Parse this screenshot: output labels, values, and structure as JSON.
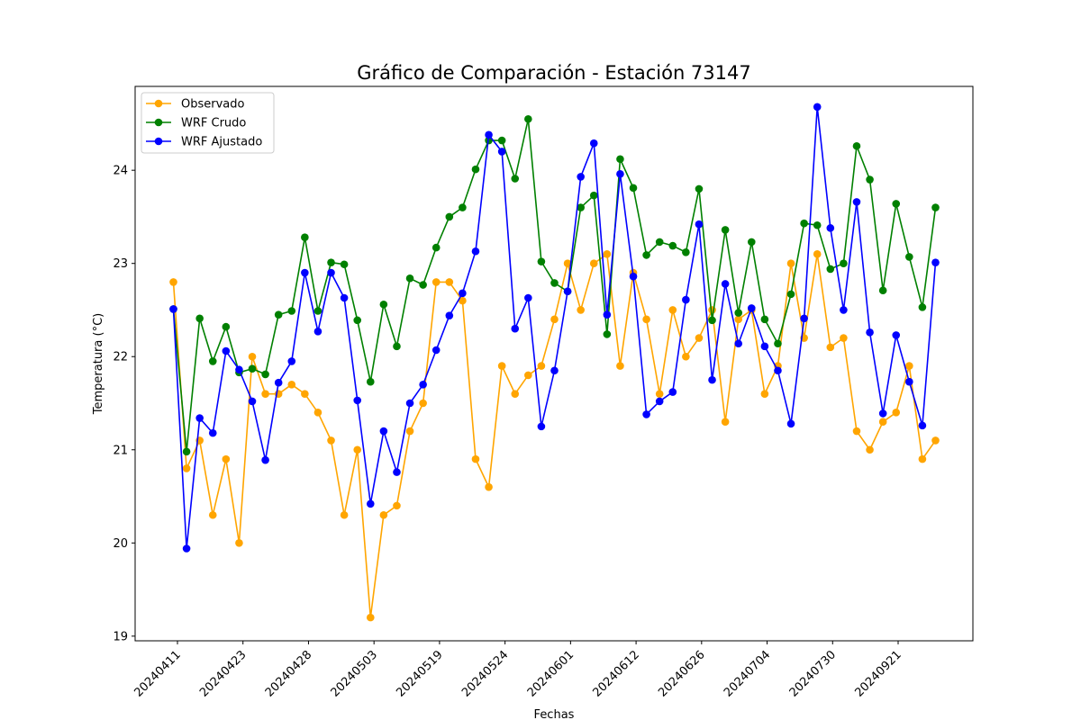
{
  "chart_data": {
    "type": "line",
    "title": "Gráfico de Comparación - Estación 73147",
    "xlabel": "Fechas",
    "ylabel": "Temperatura (°C)",
    "ylim": [
      18.95,
      24.9
    ],
    "yticks": [
      19,
      20,
      21,
      22,
      23,
      24
    ],
    "x_tick_labels": [
      "20240411",
      "20240423",
      "20240428",
      "20240503",
      "20240519",
      "20240524",
      "20240601",
      "20240612",
      "20240626",
      "20240704",
      "20240730",
      "20240921"
    ],
    "legend_placement": "top-left",
    "grid": false,
    "series": [
      {
        "name": "Observado",
        "color": "#ffa500",
        "values": [
          22.8,
          20.8,
          21.1,
          20.3,
          20.9,
          20.0,
          22.0,
          21.6,
          21.6,
          21.7,
          21.6,
          21.4,
          21.1,
          20.3,
          21.0,
          19.2,
          20.3,
          20.4,
          21.2,
          21.5,
          22.8,
          22.8,
          22.6,
          20.9,
          20.6,
          21.9,
          21.6,
          21.8,
          21.9,
          22.4,
          23.0,
          22.5,
          23.0,
          23.1,
          21.9,
          22.9,
          22.4,
          21.6,
          22.5,
          22.0,
          22.2,
          22.5,
          21.3,
          22.4,
          22.5,
          21.6,
          21.9,
          23.0,
          22.2,
          23.1,
          22.1,
          22.2,
          21.2,
          21.0,
          21.3,
          21.4,
          21.9,
          20.9,
          21.1
        ]
      },
      {
        "name": "WRF Crudo",
        "color": "#008000",
        "values": [
          22.51,
          20.98,
          22.41,
          21.95,
          22.32,
          21.83,
          21.87,
          21.81,
          22.45,
          22.49,
          23.28,
          22.49,
          23.01,
          22.99,
          22.39,
          21.73,
          22.56,
          22.11,
          22.84,
          22.77,
          23.17,
          23.5,
          23.6,
          24.01,
          24.32,
          24.32,
          23.91,
          24.55,
          23.02,
          22.79,
          22.7,
          23.6,
          23.73,
          22.24,
          24.12,
          23.81,
          23.09,
          23.23,
          23.19,
          23.12,
          23.8,
          22.39,
          23.36,
          22.47,
          23.23,
          22.4,
          22.14,
          22.67,
          23.43,
          23.41,
          22.94,
          23.0,
          24.26,
          23.9,
          22.71,
          23.64,
          23.07,
          22.53,
          23.6
        ]
      },
      {
        "name": "WRF Ajustado",
        "color": "#0000ff",
        "values": [
          22.51,
          19.94,
          21.34,
          21.18,
          22.06,
          21.86,
          21.52,
          20.89,
          21.72,
          21.95,
          22.9,
          22.27,
          22.9,
          22.63,
          21.53,
          20.42,
          21.2,
          20.76,
          21.5,
          21.7,
          22.07,
          22.44,
          22.68,
          23.13,
          24.38,
          24.2,
          22.3,
          22.63,
          21.25,
          21.85,
          22.7,
          23.93,
          24.29,
          22.45,
          23.96,
          22.86,
          21.38,
          21.52,
          21.62,
          22.61,
          23.42,
          21.75,
          22.78,
          22.14,
          22.52,
          22.11,
          21.85,
          21.28,
          22.41,
          24.68,
          23.38,
          22.5,
          23.66,
          22.26,
          21.39,
          22.23,
          21.73,
          21.26,
          23.01
        ]
      }
    ]
  }
}
